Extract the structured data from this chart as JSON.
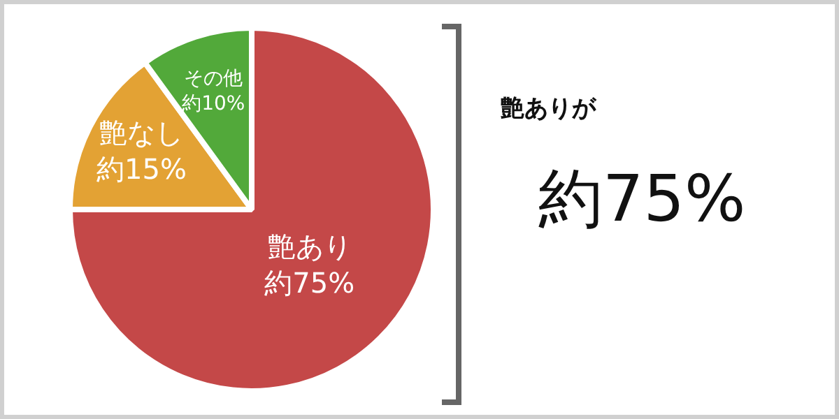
{
  "chart_data": {
    "type": "pie",
    "categories": [
      "艶あり",
      "艶なし",
      "その他"
    ],
    "values": [
      75,
      15,
      10
    ],
    "colors": [
      "#c44848",
      "#e3a234",
      "#52a93a"
    ],
    "value_labels": [
      "約75%",
      "約15%",
      "約10%"
    ],
    "annotations": [
      "艶ありが",
      "約75%"
    ],
    "legend": false
  }
}
